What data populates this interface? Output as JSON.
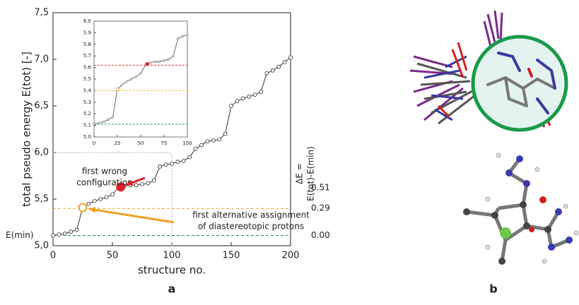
{
  "chart_data": [
    {
      "type": "line",
      "ylabel": "total pseudo energy E(tot) [-]",
      "xlabel": "structure no.",
      "xlim": [
        0,
        200
      ],
      "ylim": [
        5.0,
        7.5
      ],
      "xticks": [
        0,
        50,
        100,
        150,
        200
      ],
      "yticks": [
        {
          "value": 5.0,
          "label": "5,0"
        },
        {
          "value": 5.5,
          "label": "5,5"
        },
        {
          "value": 6.0,
          "label": "6,0"
        },
        {
          "value": 6.5,
          "label": "6,5"
        },
        {
          "value": 7.0,
          "label": "7,0"
        },
        {
          "value": 7.5,
          "label": "7,5"
        }
      ],
      "x": [
        0,
        5,
        10,
        15,
        20,
        25,
        30,
        35,
        40,
        45,
        50,
        55,
        60,
        65,
        70,
        75,
        80,
        85,
        90,
        95,
        100,
        105,
        110,
        115,
        120,
        125,
        130,
        135,
        140,
        145,
        150,
        155,
        160,
        165,
        170,
        175,
        180,
        185,
        190,
        195,
        200
      ],
      "series": [
        {
          "color": "#333333",
          "values": [
            5.11,
            5.12,
            5.13,
            5.15,
            5.17,
            5.41,
            5.45,
            5.48,
            5.5,
            5.52,
            5.55,
            5.62,
            5.64,
            5.65,
            5.65,
            5.66,
            5.67,
            5.7,
            5.85,
            5.87,
            5.88,
            5.9,
            5.91,
            5.95,
            6.04,
            6.08,
            6.12,
            6.13,
            6.14,
            6.2,
            6.5,
            6.55,
            6.58,
            6.6,
            6.62,
            6.65,
            6.85,
            6.88,
            6.92,
            6.97,
            7.02
          ]
        }
      ],
      "highlights": [
        {
          "x": 57,
          "y": 5.63,
          "color": "#e0202a",
          "filled": true
        },
        {
          "x": 25,
          "y": 5.41,
          "color": "#f0a020",
          "filled": false
        }
      ],
      "emin": {
        "value": 5.11,
        "label": "E(min)",
        "color": "#1a8a4a"
      },
      "delta_title": "ΔE =",
      "delta_subtitle": "E(tot)-E(min)",
      "delta_labels": [
        {
          "value": 0.51,
          "label": "0.51",
          "color": "#e0202a",
          "line": false
        },
        {
          "value": 0.29,
          "label": "0.29",
          "color": "#f0a020",
          "line": true
        },
        {
          "value": 0.0,
          "label": "0.00",
          "color": "#1a8a4a",
          "line": true
        }
      ],
      "annotations": [
        {
          "lines": [
            "first wrong",
            "configuration"
          ],
          "color": "#e0202a"
        },
        {
          "lines": [
            "first alternative assignment",
            "of diastereotopic protons"
          ],
          "color": "#f0a020"
        }
      ],
      "panel_label": "a"
    },
    {
      "type": "inset",
      "xlim": [
        0,
        100
      ],
      "ylim": [
        5.0,
        6.0
      ],
      "xticks": [
        0,
        25,
        50,
        75,
        100
      ],
      "yticks": [
        {
          "value": 5.0,
          "label": "5.0"
        },
        5.1,
        5.2,
        5.3,
        5.4,
        5.5,
        5.6,
        5.7,
        5.8,
        5.9,
        {
          "value": 6.0,
          "label": "6.0"
        }
      ]
    }
  ],
  "panel_b": "b"
}
